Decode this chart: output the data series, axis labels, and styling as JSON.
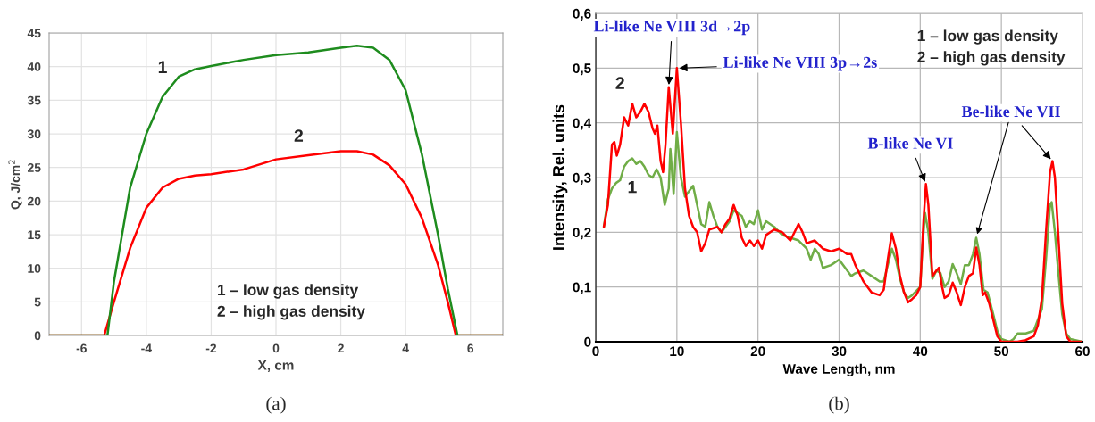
{
  "chart_data": [
    {
      "type": "line",
      "xlabel": "X, cm",
      "ylabel": "Q, J/cm$^{2}$",
      "xlim": [
        -7,
        7
      ],
      "ylim": [
        0,
        45
      ],
      "xticks": [
        -6,
        -4,
        -2,
        0,
        2,
        4,
        6
      ],
      "yticks": [
        0,
        5,
        10,
        15,
        20,
        25,
        30,
        35,
        40,
        45
      ],
      "grid": true,
      "series": [
        {
          "color": "#1e8c1e",
          "x": [
            -7,
            -5.2,
            -5.0,
            -4.5,
            -4,
            -3.5,
            -3,
            -2.5,
            -2,
            -1,
            0,
            1,
            2,
            2.5,
            3,
            3.5,
            4,
            4.5,
            5,
            5.3,
            5.6,
            7
          ],
          "values": [
            0,
            0,
            8,
            22,
            30,
            35.5,
            38.5,
            39.6,
            40.1,
            41,
            41.7,
            42.1,
            42.8,
            43.1,
            42.8,
            41,
            36.5,
            27,
            15,
            7,
            0,
            0
          ]
        },
        {
          "color": "#ff0000",
          "x": [
            -7,
            -5.3,
            -5,
            -4.5,
            -4,
            -3.5,
            -3,
            -2.5,
            -2,
            -1,
            0,
            1,
            2,
            2.5,
            3,
            3.5,
            4,
            4.5,
            5,
            5.3,
            5.55,
            7
          ],
          "values": [
            0,
            0,
            5,
            13,
            19,
            22,
            23.3,
            23.8,
            24,
            24.7,
            26.2,
            26.8,
            27.4,
            27.4,
            26.9,
            25.3,
            22.5,
            17.5,
            10.5,
            5,
            0,
            0
          ]
        }
      ],
      "annotations": [
        "1",
        "2",
        "1 – low gas density\n2 – high gas density",
        "(a)"
      ]
    },
    {
      "type": "line",
      "xlabel": "Wave Length, nm",
      "ylabel": "Intensity, Rel. units",
      "xlim": [
        0,
        60
      ],
      "ylim": [
        0,
        0.6
      ],
      "xticks": [
        0,
        10,
        20,
        30,
        40,
        50,
        60
      ],
      "yticks": [
        0,
        {
          "value": 0.1,
          "label": "0,1"
        },
        {
          "value": 0.2,
          "label": "0,2"
        },
        {
          "value": 0.3,
          "label": "0,3"
        },
        {
          "value": 0.4,
          "label": "0,4"
        },
        {
          "value": 0.5,
          "label": "0,5"
        },
        {
          "value": 0.6,
          "label": "0,6"
        }
      ],
      "grid": true,
      "series": [
        {
          "color": "#70ad47",
          "x": [
            1,
            1.5,
            2,
            2.5,
            3,
            3.5,
            4,
            4.5,
            5,
            5.5,
            6,
            6.5,
            7,
            7.5,
            8,
            8.5,
            9,
            9.2,
            9.6,
            10,
            10.5,
            11,
            11.5,
            12,
            12.5,
            13,
            13.5,
            14,
            14.5,
            15,
            15.5,
            16,
            16.5,
            17,
            17.5,
            18,
            18.5,
            19,
            19.5,
            20,
            20.5,
            21,
            22,
            23,
            24,
            25,
            26,
            26.5,
            27,
            27.5,
            28,
            29,
            30,
            31,
            31.5,
            32,
            33,
            34,
            35,
            35.5,
            36,
            36.5,
            37,
            37.5,
            38,
            38.5,
            39,
            40,
            40.3,
            40.6,
            41,
            41.5,
            42,
            42.5,
            43,
            43.5,
            44,
            44.5,
            45,
            45.5,
            46,
            46.5,
            46.9,
            47.3,
            47.8,
            48.3,
            49,
            49.5,
            50,
            51,
            51.5,
            52,
            53,
            54,
            55,
            55.5,
            56,
            56.2,
            56.6,
            57,
            57.5,
            58,
            58.5,
            60
          ],
          "values": [
            0.21,
            0.26,
            0.28,
            0.29,
            0.295,
            0.32,
            0.33,
            0.335,
            0.325,
            0.33,
            0.32,
            0.305,
            0.3,
            0.315,
            0.3,
            0.25,
            0.28,
            0.352,
            0.27,
            0.383,
            0.3,
            0.265,
            0.275,
            0.285,
            0.25,
            0.215,
            0.21,
            0.255,
            0.23,
            0.21,
            0.2,
            0.21,
            0.22,
            0.24,
            0.235,
            0.23,
            0.21,
            0.22,
            0.215,
            0.24,
            0.205,
            0.22,
            0.21,
            0.195,
            0.19,
            0.185,
            0.17,
            0.15,
            0.17,
            0.16,
            0.135,
            0.14,
            0.15,
            0.13,
            0.12,
            0.125,
            0.13,
            0.12,
            0.11,
            0.11,
            0.14,
            0.17,
            0.15,
            0.115,
            0.09,
            0.08,
            0.085,
            0.1,
            0.18,
            0.235,
            0.2,
            0.115,
            0.13,
            0.125,
            0.1,
            0.11,
            0.142,
            0.125,
            0.105,
            0.14,
            0.14,
            0.16,
            0.19,
            0.16,
            0.095,
            0.09,
            0.05,
            0.02,
            0.005,
            0,
            0.005,
            0.015,
            0.015,
            0.02,
            0.06,
            0.15,
            0.25,
            0.255,
            0.2,
            0.13,
            0.05,
            0.015,
            0.005,
            0
          ]
        },
        {
          "color": "#ff0000",
          "x": [
            1,
            1.5,
            2,
            2.3,
            2.6,
            3,
            3.5,
            4,
            4.5,
            5,
            5.5,
            6,
            6.5,
            7,
            7.3,
            7.6,
            8,
            8.3,
            8.6,
            9,
            9.5,
            10,
            10.5,
            11,
            11.5,
            12,
            12.5,
            13,
            13.5,
            14,
            15,
            15.5,
            16,
            16.5,
            17,
            17.5,
            18,
            18.5,
            19,
            19.5,
            20,
            20.5,
            21,
            22,
            23,
            24,
            25,
            25.5,
            26,
            27,
            28,
            29,
            30,
            31,
            31.5,
            32,
            33,
            34,
            35,
            35.5,
            36,
            36.5,
            37,
            37.5,
            38,
            38.5,
            39,
            39.5,
            40,
            40.4,
            40.7,
            41,
            41.5,
            42,
            42.3,
            42.7,
            43,
            43.5,
            44,
            44.5,
            45,
            45.5,
            46,
            46.5,
            46.9,
            47.3,
            47.7,
            48,
            48.5,
            49,
            49.5,
            50,
            51,
            52,
            53,
            54,
            54.5,
            55,
            55.5,
            56,
            56.3,
            56.6,
            57,
            57.5,
            58,
            58.5,
            60
          ],
          "values": [
            0.21,
            0.25,
            0.36,
            0.365,
            0.34,
            0.36,
            0.41,
            0.395,
            0.435,
            0.41,
            0.42,
            0.435,
            0.42,
            0.39,
            0.38,
            0.395,
            0.33,
            0.31,
            0.36,
            0.465,
            0.38,
            0.5,
            0.4,
            0.28,
            0.23,
            0.21,
            0.2,
            0.165,
            0.18,
            0.205,
            0.21,
            0.2,
            0.215,
            0.225,
            0.25,
            0.23,
            0.19,
            0.175,
            0.185,
            0.175,
            0.185,
            0.17,
            0.195,
            0.205,
            0.2,
            0.185,
            0.215,
            0.2,
            0.18,
            0.185,
            0.17,
            0.165,
            0.17,
            0.16,
            0.16,
            0.14,
            0.11,
            0.09,
            0.085,
            0.095,
            0.15,
            0.198,
            0.17,
            0.12,
            0.09,
            0.072,
            0.078,
            0.085,
            0.1,
            0.22,
            0.288,
            0.25,
            0.12,
            0.13,
            0.135,
            0.1,
            0.08,
            0.085,
            0.108,
            0.09,
            0.067,
            0.1,
            0.12,
            0.125,
            0.172,
            0.14,
            0.085,
            0.09,
            0.07,
            0.04,
            0.01,
            0,
            0,
            0,
            0.003,
            0.01,
            0.03,
            0.08,
            0.2,
            0.31,
            0.33,
            0.3,
            0.2,
            0.07,
            0.01,
            0,
            0
          ]
        }
      ],
      "annotations": [
        "2",
        "1",
        {
          "text": "Li-like Ne VIII 3d→2p",
          "x": 9,
          "y": 0.465
        },
        {
          "text": "Li-like Ne VIII 3p→2s",
          "x": 10,
          "y": 0.5
        },
        {
          "text": "B-like Ne VI",
          "x": 40.7,
          "y": 0.288
        },
        {
          "text": "Be-like Ne VII",
          "x": 56.3,
          "y": 0.33
        },
        "1 – low gas density\n2 – high gas density",
        "(b)"
      ]
    }
  ]
}
